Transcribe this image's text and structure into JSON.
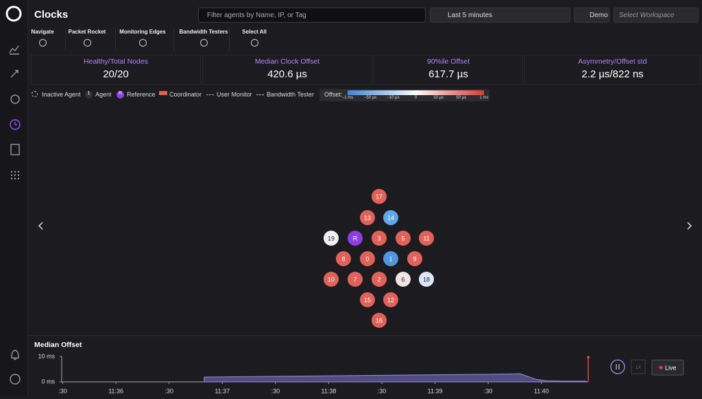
{
  "header": {
    "title": "Clocks",
    "search_placeholder": "Filter agents by Name, IP, or Tag",
    "time_range": "Last 5 minutes",
    "demo": "Demo",
    "workspace": "Select Workspace"
  },
  "toolbar": [
    "Navigate",
    "Packet Rocket",
    "Monitoring Edges",
    "Bandwidth Testers",
    "Select All"
  ],
  "stats": [
    {
      "label": "Healthy/Total Nodes",
      "value": "20/20"
    },
    {
      "label": "Median Clock Offset",
      "value": "420.6 µs"
    },
    {
      "label": "90%ile Offset",
      "value": "617.7 µs"
    },
    {
      "label": "Asymmetry/Offset std",
      "value": "2.2 µs/822 ns"
    }
  ],
  "legend": [
    {
      "label": "Inactive Agent"
    },
    {
      "icon": "1",
      "label": "Agent"
    },
    {
      "icon": "R",
      "label": "Reference"
    },
    {
      "label": "Coordinator"
    },
    {
      "label": "User Monitor"
    },
    {
      "label": "Bandwidth Tester"
    }
  ],
  "offset_scale": {
    "label": "Offset:",
    "ticks": [
      "−1 ms",
      "−50 µs",
      "−10 µs",
      "0",
      "10 µs",
      "50 µs",
      "1 ms"
    ]
  },
  "nodes": [
    {
      "label": "17",
      "color": "#e0625a"
    },
    {
      "label": "13",
      "color": "#e0625a"
    },
    {
      "label": "14",
      "color": "#5ea7e8"
    },
    {
      "label": "19",
      "color": "#f1f1f1"
    },
    {
      "label": "R",
      "color": "#8b3fdc"
    },
    {
      "label": "3",
      "color": "#e0625a"
    },
    {
      "label": "5",
      "color": "#e0625a"
    },
    {
      "label": "11",
      "color": "#e0625a"
    },
    {
      "label": "8",
      "color": "#e0625a"
    },
    {
      "label": "0",
      "color": "#e0625a"
    },
    {
      "label": "1",
      "color": "#4f95df"
    },
    {
      "label": "9",
      "color": "#e0625a"
    },
    {
      "label": "10",
      "color": "#e0625a"
    },
    {
      "label": "7",
      "color": "#e0625a"
    },
    {
      "label": "2",
      "color": "#e0625a"
    },
    {
      "label": "6",
      "color": "#f2e4e4"
    },
    {
      "label": "18",
      "color": "#dce8f6"
    },
    {
      "label": "15",
      "color": "#e0625a"
    },
    {
      "label": "12",
      "color": "#e0625a"
    },
    {
      "label": "16",
      "color": "#e0625a"
    }
  ],
  "chart_data": {
    "type": "area",
    "title": "Median Offset",
    "color": "#6a5fa8",
    "x": [
      36.83,
      37.5,
      38.5,
      39.5,
      39.8,
      39.95,
      40.05,
      40.2,
      40.42
    ],
    "values": [
      1.9,
      2.2,
      2.6,
      3.0,
      3.2,
      1.0,
      0.4,
      0.3,
      0.3
    ],
    "xlim": [
      35.49,
      40.44
    ],
    "ylim": [
      0,
      10
    ],
    "yticks": [
      {
        "value": 10,
        "label": "10 ms"
      },
      {
        "value": 0,
        "label": "0 ms"
      }
    ],
    "xticks": [
      {
        "value": 35.5,
        "label": ":30"
      },
      {
        "value": 36,
        "label": "11:36"
      },
      {
        "value": 36.5,
        "label": ":30"
      },
      {
        "value": 37,
        "label": "11:37"
      },
      {
        "value": 37.5,
        "label": ":30"
      },
      {
        "value": 38,
        "label": "11:38"
      },
      {
        "value": 38.5,
        "label": ":30"
      },
      {
        "value": 39,
        "label": "11:39"
      },
      {
        "value": 39.5,
        "label": ":30"
      },
      {
        "value": 40,
        "label": "11:40"
      }
    ]
  },
  "controls": {
    "speed": "1X",
    "live": "Live"
  }
}
